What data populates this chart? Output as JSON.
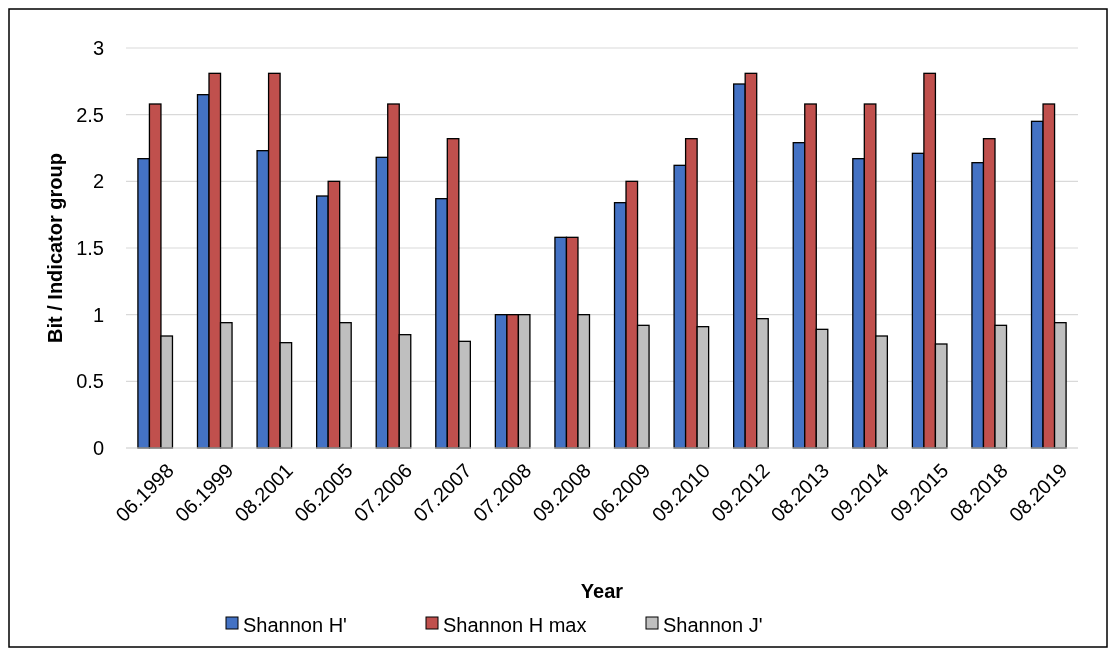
{
  "chart_data": {
    "type": "bar",
    "xlabel": "Year",
    "ylabel": "Bit / Indicator group",
    "categories": [
      "06.1998",
      "06.1999",
      "08.2001",
      "06.2005",
      "07.2006",
      "07.2007",
      "07.2008",
      "09.2008",
      "06.2009",
      "09.2010",
      "09.2012",
      "08.2013",
      "09.2014",
      "09.2015",
      "08.2018",
      "08.2019"
    ],
    "series": [
      {
        "name": "Shannon H'",
        "color": "#4472c4",
        "values": [
          2.17,
          2.65,
          2.23,
          1.89,
          2.18,
          1.87,
          1.0,
          1.58,
          1.84,
          2.12,
          2.73,
          2.29,
          2.17,
          2.21,
          2.14,
          2.45
        ]
      },
      {
        "name": "Shannon H max",
        "color": "#c0504d",
        "values": [
          2.58,
          2.81,
          2.81,
          2.0,
          2.58,
          2.32,
          1.0,
          1.58,
          2.0,
          2.32,
          2.81,
          2.58,
          2.58,
          2.81,
          2.32,
          2.58
        ]
      },
      {
        "name": "Shannon J'",
        "color": "#bfbfbf",
        "values": [
          0.84,
          0.94,
          0.79,
          0.94,
          0.85,
          0.8,
          1.0,
          1.0,
          0.92,
          0.91,
          0.97,
          0.89,
          0.84,
          0.78,
          0.92,
          0.94
        ]
      }
    ],
    "ylim": [
      0,
      3
    ],
    "yticks": [
      0,
      0.5,
      1,
      1.5,
      2,
      2.5,
      3
    ],
    "grid": "y",
    "legend": "bottom"
  }
}
